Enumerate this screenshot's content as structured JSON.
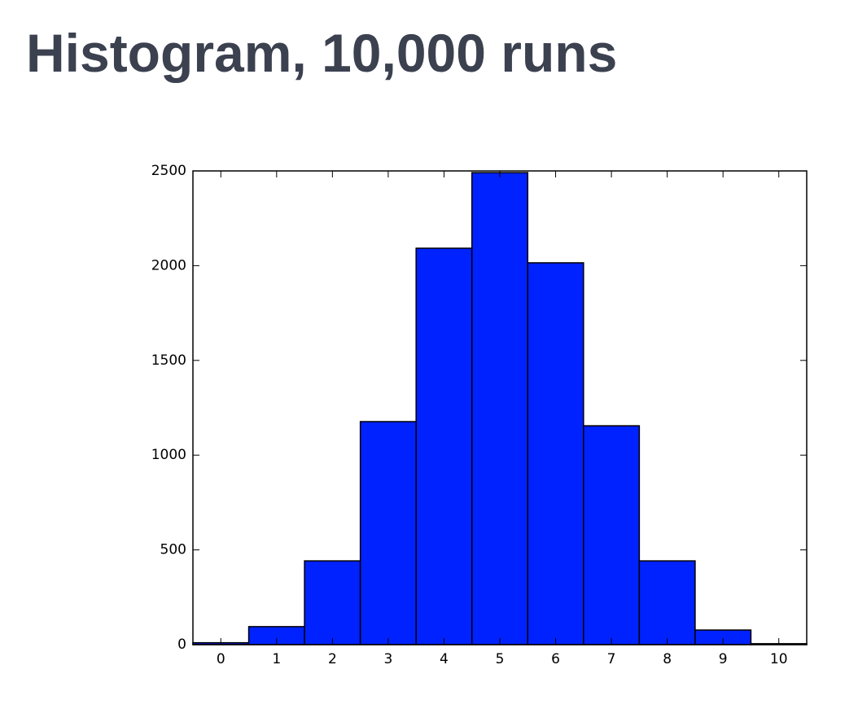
{
  "chart_data": {
    "type": "histogram",
    "title": "Histogram, 10,000 runs",
    "bins": [
      -0.5,
      0.5,
      1.5,
      2.5,
      3.5,
      4.5,
      5.5,
      6.5,
      7.5,
      8.5,
      9.5,
      10.5
    ],
    "values": [
      10,
      95,
      442,
      1177,
      2092,
      2491,
      2015,
      1155,
      442,
      77,
      5
    ],
    "color": "#0022ff",
    "xlim": [
      -0.5,
      10.5
    ],
    "xticks": [
      0,
      1,
      2,
      3,
      4,
      5,
      6,
      7,
      8,
      9,
      10
    ],
    "ylim": [
      0,
      2500
    ],
    "yticks": [
      0,
      500,
      1000,
      1500,
      2000,
      2500
    ],
    "grid": false
  }
}
